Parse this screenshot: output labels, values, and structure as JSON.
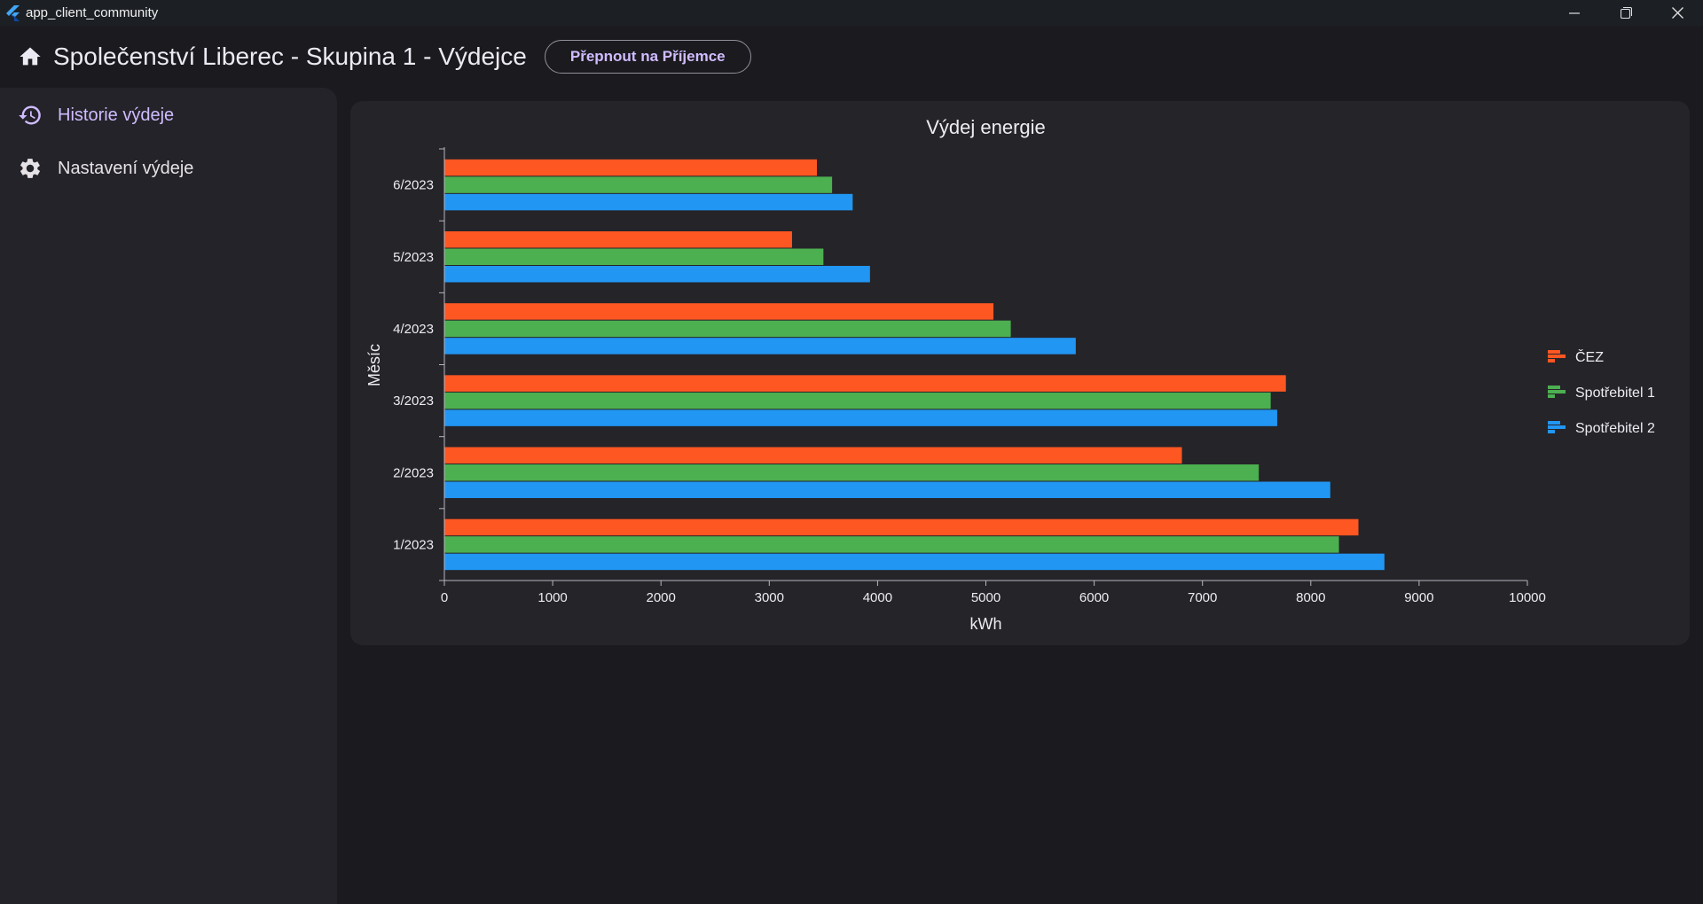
{
  "window": {
    "title": "app_client_community"
  },
  "appbar": {
    "title": "Společenství Liberec - Skupina 1 - Výdejce",
    "switch_label": "Přepnout na Příjemce"
  },
  "sidebar": {
    "items": [
      {
        "label": "Historie výdeje",
        "icon": "history-icon",
        "active": true
      },
      {
        "label": "Nastavení výdeje",
        "icon": "gear-icon",
        "active": false
      }
    ]
  },
  "colors": {
    "accent": "#d0bcff",
    "cez": "#ff5722",
    "consumer1": "#4caf50",
    "consumer2": "#2196f3"
  },
  "chart_data": {
    "type": "bar",
    "orientation": "horizontal",
    "title": "Výdej energie",
    "xlabel": "kWh",
    "ylabel": "Měsíc",
    "xlim": [
      0,
      10000
    ],
    "xticks": [
      0,
      1000,
      2000,
      3000,
      4000,
      5000,
      6000,
      7000,
      8000,
      9000,
      10000
    ],
    "categories": [
      "1/2023",
      "2/2023",
      "3/2023",
      "4/2023",
      "5/2023",
      "6/2023"
    ],
    "series": [
      {
        "name": "ČEZ",
        "color": "#ff5722",
        "values": [
          8440,
          6810,
          7770,
          5070,
          3210,
          3440
        ]
      },
      {
        "name": "Spotřebitel 1",
        "color": "#4caf50",
        "values": [
          8260,
          7520,
          7630,
          5230,
          3500,
          3580
        ]
      },
      {
        "name": "Spotřebitel 2",
        "color": "#2196f3",
        "values": [
          8680,
          8180,
          7690,
          5830,
          3930,
          3770
        ]
      }
    ],
    "legend_position": "right",
    "grid": false
  }
}
